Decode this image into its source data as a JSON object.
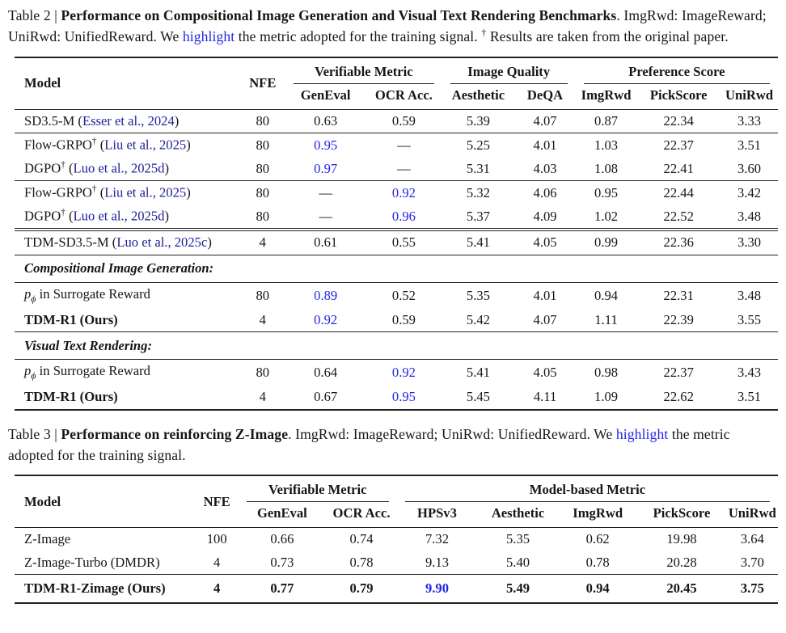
{
  "colors": {
    "text": "#161616",
    "highlight": "#2424e8",
    "citation": "#20209b",
    "rule": "#222222",
    "background": "#ffffff"
  },
  "table2": {
    "caption": {
      "label": "Table 2",
      "separator": " | ",
      "title": "Performance on Compositional Image Generation and Visual Text Rendering Benchmarks",
      "mid": ". ImgRwd: ImageReward; UniRwd: UnifiedReward. We ",
      "highlight_word": "highlight",
      "tail": " the metric adopted for the training signal. ",
      "note_sup": "†",
      "note": " Results are taken from the original paper."
    },
    "header": {
      "model": "Model",
      "nfe": "NFE",
      "groups": [
        {
          "label": "Verifiable Metric",
          "cols": [
            "GenEval",
            "OCR Acc."
          ]
        },
        {
          "label": "Image Quality",
          "cols": [
            "Aesthetic",
            "DeQA"
          ]
        },
        {
          "label": "Preference Score",
          "cols": [
            "ImgRwd",
            "PickScore",
            "UniRwd"
          ]
        }
      ]
    },
    "col_widths": [
      "29.5%",
      "6%",
      "10.5%",
      "10%",
      "9.5%",
      "8%",
      "8%",
      "11%",
      "7.5%"
    ],
    "groups": [
      {
        "rows": [
          {
            "model": {
              "text": "SD3.5-M",
              "cite": "Esser et al., 2024"
            },
            "nfe": "80",
            "values": [
              "0.63",
              "0.59",
              "5.39",
              "4.07",
              "0.87",
              "22.34",
              "3.33"
            ],
            "hl": []
          }
        ]
      },
      {
        "rows": [
          {
            "model": {
              "text": "Flow-GRPO",
              "sup": "†",
              "cite": "Liu et al., 2025"
            },
            "nfe": "80",
            "values": [
              "0.95",
              "—",
              "5.25",
              "4.01",
              "1.03",
              "22.37",
              "3.51"
            ],
            "hl": [
              0
            ]
          },
          {
            "model": {
              "text": "DGPO",
              "sup": "†",
              "cite": "Luo et al., 2025d"
            },
            "nfe": "80",
            "values": [
              "0.97",
              "—",
              "5.31",
              "4.03",
              "1.08",
              "22.41",
              "3.60"
            ],
            "hl": [
              0
            ]
          }
        ]
      },
      {
        "rows": [
          {
            "model": {
              "text": "Flow-GRPO",
              "sup": "†",
              "cite": "Liu et al., 2025"
            },
            "nfe": "80",
            "values": [
              "—",
              "0.92",
              "5.32",
              "4.06",
              "0.95",
              "22.44",
              "3.42"
            ],
            "hl": [
              1
            ]
          },
          {
            "model": {
              "text": "DGPO",
              "sup": "†",
              "cite": "Luo et al., 2025d"
            },
            "nfe": "80",
            "values": [
              "—",
              "0.96",
              "5.37",
              "4.09",
              "1.02",
              "22.52",
              "3.48"
            ],
            "hl": [
              1
            ]
          }
        ]
      },
      {
        "rule_before": "double",
        "rows": [
          {
            "model": {
              "text": "TDM-SD3.5-M",
              "cite": "Luo et al., 2025c"
            },
            "nfe": "4",
            "values": [
              "0.61",
              "0.55",
              "5.41",
              "4.05",
              "0.99",
              "22.36",
              "3.30"
            ],
            "hl": []
          }
        ]
      },
      {
        "section": "Compositional Image Generation:"
      },
      {
        "rows": [
          {
            "model": {
              "math": {
                "base": "p",
                "sub": "ϕ"
              },
              "text": " in Surrogate Reward"
            },
            "nfe": "80",
            "values": [
              "0.89",
              "0.52",
              "5.35",
              "4.01",
              "0.94",
              "22.31",
              "3.48"
            ],
            "hl": [
              0
            ]
          },
          {
            "model": {
              "text": "TDM-R1 (Ours)",
              "bold": true
            },
            "nfe": "4",
            "values": [
              "0.92",
              "0.59",
              "5.42",
              "4.07",
              "1.11",
              "22.39",
              "3.55"
            ],
            "hl": [
              0
            ]
          }
        ]
      },
      {
        "section": "Visual Text Rendering:"
      },
      {
        "rows": [
          {
            "model": {
              "math": {
                "base": "p",
                "sub": "ϕ"
              },
              "text": " in Surrogate Reward"
            },
            "nfe": "80",
            "values": [
              "0.64",
              "0.92",
              "5.41",
              "4.05",
              "0.98",
              "22.37",
              "3.43"
            ],
            "hl": [
              1
            ]
          },
          {
            "model": {
              "text": "TDM-R1 (Ours)",
              "bold": true
            },
            "nfe": "4",
            "values": [
              "0.67",
              "0.95",
              "5.45",
              "4.11",
              "1.09",
              "22.62",
              "3.51"
            ],
            "hl": [
              1
            ]
          }
        ]
      }
    ]
  },
  "table3": {
    "caption": {
      "label": "Table 3",
      "separator": " | ",
      "title": "Performance on reinforcing Z-Image",
      "mid": ". ImgRwd: ImageReward; UniRwd: UnifiedReward. We ",
      "highlight_word": "highlight",
      "tail": " the metric adopted for the training signal.",
      "note_sup": "",
      "note": ""
    },
    "header": {
      "model": "Model",
      "nfe": "NFE",
      "groups": [
        {
          "label": "Verifiable Metric",
          "cols": [
            "GenEval",
            "OCR Acc."
          ]
        },
        {
          "label": "Model-based Metric",
          "cols": [
            "HPSv3",
            "Aesthetic",
            "ImgRwd",
            "PickScore",
            "UniRwd"
          ]
        }
      ]
    },
    "col_widths": [
      "23.7%",
      "5.6%",
      "11.5%",
      "9.3%",
      "10.5%",
      "10.7%",
      "10.2%",
      "11.8%",
      "6.7%"
    ],
    "groups": [
      {
        "rows": [
          {
            "model": {
              "text": "Z-Image"
            },
            "nfe": "100",
            "values": [
              "0.66",
              "0.74",
              "7.32",
              "5.35",
              "0.62",
              "19.98",
              "3.64"
            ],
            "hl": []
          },
          {
            "model": {
              "text": "Z-Image-Turbo (DMDR)"
            },
            "nfe": "4",
            "values": [
              "0.73",
              "0.78",
              "9.13",
              "5.40",
              "0.78",
              "20.28",
              "3.70"
            ],
            "hl": []
          }
        ]
      },
      {
        "rule_before": "medium",
        "rows": [
          {
            "model": {
              "text": "TDM-R1-Zimage (Ours)"
            },
            "bold": true,
            "nfe": "4",
            "values": [
              "0.77",
              "0.79",
              "9.90",
              "5.49",
              "0.94",
              "20.45",
              "3.75"
            ],
            "hl": [
              2
            ]
          }
        ]
      }
    ]
  }
}
